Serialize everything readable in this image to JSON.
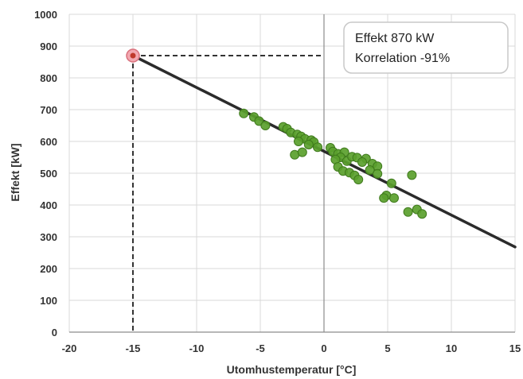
{
  "chart_data": {
    "type": "scatter",
    "xlabel": "Utomhustemperatur [°C]",
    "ylabel": "Effekt [kW]",
    "xlim": [
      -20,
      15
    ],
    "ylim": [
      0,
      1000
    ],
    "xticks": [
      -20,
      -15,
      -10,
      -5,
      0,
      5,
      10,
      15
    ],
    "yticks": [
      0,
      100,
      200,
      300,
      400,
      500,
      600,
      700,
      800,
      900,
      1000
    ],
    "grid": true,
    "legend": "none",
    "annotation_lines": [
      "Effekt 870 kW",
      "Korrelation -91%"
    ],
    "annotation_position": "top-right",
    "highlight_point": {
      "x": -15,
      "y": 870
    },
    "trendline": {
      "x": [
        -15,
        15
      ],
      "y": [
        870,
        268
      ]
    },
    "points": [
      {
        "x": -6.3,
        "y": 688
      },
      {
        "x": -5.5,
        "y": 677
      },
      {
        "x": -5.1,
        "y": 664
      },
      {
        "x": -4.6,
        "y": 650
      },
      {
        "x": -3.2,
        "y": 646
      },
      {
        "x": -2.9,
        "y": 640
      },
      {
        "x": -2.6,
        "y": 628
      },
      {
        "x": -2.1,
        "y": 622
      },
      {
        "x": -1.8,
        "y": 616
      },
      {
        "x": -1.5,
        "y": 608
      },
      {
        "x": -1.0,
        "y": 604
      },
      {
        "x": -0.8,
        "y": 598
      },
      {
        "x": -2.0,
        "y": 600
      },
      {
        "x": -1.2,
        "y": 590
      },
      {
        "x": -0.5,
        "y": 582
      },
      {
        "x": -2.3,
        "y": 558
      },
      {
        "x": -1.7,
        "y": 566
      },
      {
        "x": 0.5,
        "y": 580
      },
      {
        "x": 0.7,
        "y": 568
      },
      {
        "x": 1.1,
        "y": 561
      },
      {
        "x": 1.6,
        "y": 566
      },
      {
        "x": 1.3,
        "y": 550
      },
      {
        "x": 0.9,
        "y": 543
      },
      {
        "x": 1.8,
        "y": 538
      },
      {
        "x": 2.2,
        "y": 552
      },
      {
        "x": 2.6,
        "y": 549
      },
      {
        "x": 3.3,
        "y": 546
      },
      {
        "x": 3.0,
        "y": 535
      },
      {
        "x": 3.8,
        "y": 530
      },
      {
        "x": 4.2,
        "y": 522
      },
      {
        "x": 3.6,
        "y": 510
      },
      {
        "x": 1.1,
        "y": 520
      },
      {
        "x": 1.5,
        "y": 507
      },
      {
        "x": 2.0,
        "y": 502
      },
      {
        "x": 2.4,
        "y": 493
      },
      {
        "x": 2.7,
        "y": 480
      },
      {
        "x": 4.2,
        "y": 498
      },
      {
        "x": 5.3,
        "y": 468
      },
      {
        "x": 4.9,
        "y": 430
      },
      {
        "x": 4.7,
        "y": 422
      },
      {
        "x": 5.5,
        "y": 422
      },
      {
        "x": 6.9,
        "y": 494
      },
      {
        "x": 7.3,
        "y": 386
      },
      {
        "x": 6.6,
        "y": 378
      },
      {
        "x": 7.7,
        "y": 372
      }
    ]
  }
}
